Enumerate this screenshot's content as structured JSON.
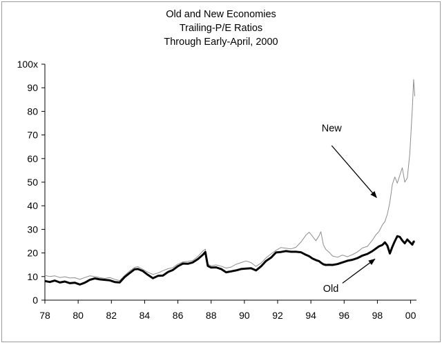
{
  "chart_data": {
    "type": "line",
    "title": "Old and New Economies",
    "subtitle": [
      "Trailing-P/E Ratios",
      "Through Early-April, 2000"
    ],
    "xlabel": "",
    "ylabel": "",
    "xlim": [
      1978,
      2000.35
    ],
    "ylim": [
      0,
      100
    ],
    "x_ticks": [
      "78",
      "80",
      "82",
      "84",
      "86",
      "88",
      "90",
      "92",
      "94",
      "96",
      "98",
      "00"
    ],
    "x_tick_values": [
      1978,
      1980,
      1982,
      1984,
      1986,
      1988,
      1990,
      1992,
      1994,
      1996,
      1998,
      2000
    ],
    "y_ticks": [
      "0",
      "10",
      "20",
      "30",
      "40",
      "50",
      "60",
      "70",
      "80",
      "90",
      "100x"
    ],
    "y_tick_values": [
      0,
      10,
      20,
      30,
      40,
      50,
      60,
      70,
      80,
      90,
      100
    ],
    "grid": false,
    "legend": "none",
    "annotations": [
      {
        "text": "New",
        "series": "New"
      },
      {
        "text": "Old",
        "series": "Old"
      }
    ],
    "series": [
      {
        "name": "New",
        "color": "#8c8c8c",
        "points": [
          [
            1978.0,
            10.5
          ],
          [
            1978.3,
            10.0
          ],
          [
            1978.6,
            10.3
          ],
          [
            1978.9,
            9.6
          ],
          [
            1979.2,
            9.9
          ],
          [
            1979.5,
            9.4
          ],
          [
            1979.8,
            9.5
          ],
          [
            1980.1,
            8.8
          ],
          [
            1980.4,
            9.6
          ],
          [
            1980.7,
            10.3
          ],
          [
            1981.0,
            10.0
          ],
          [
            1981.3,
            9.6
          ],
          [
            1981.6,
            9.2
          ],
          [
            1981.9,
            9.6
          ],
          [
            1982.2,
            8.8
          ],
          [
            1982.5,
            8.3
          ],
          [
            1982.8,
            10.5
          ],
          [
            1983.1,
            12.4
          ],
          [
            1983.4,
            13.9
          ],
          [
            1983.6,
            14.2
          ],
          [
            1983.9,
            13.0
          ],
          [
            1984.2,
            11.8
          ],
          [
            1984.5,
            10.9
          ],
          [
            1984.8,
            11.5
          ],
          [
            1985.1,
            12.5
          ],
          [
            1985.4,
            13.3
          ],
          [
            1985.7,
            13.8
          ],
          [
            1986.0,
            15.3
          ],
          [
            1986.3,
            16.2
          ],
          [
            1986.6,
            16.4
          ],
          [
            1986.9,
            16.8
          ],
          [
            1987.2,
            18.5
          ],
          [
            1987.5,
            20.8
          ],
          [
            1987.65,
            21.6
          ],
          [
            1987.8,
            15.3
          ],
          [
            1988.0,
            14.6
          ],
          [
            1988.3,
            14.9
          ],
          [
            1988.6,
            14.4
          ],
          [
            1988.9,
            13.6
          ],
          [
            1989.2,
            14.0
          ],
          [
            1989.5,
            15.2
          ],
          [
            1989.8,
            15.9
          ],
          [
            1990.1,
            16.6
          ],
          [
            1990.4,
            15.9
          ],
          [
            1990.7,
            14.3
          ],
          [
            1991.0,
            15.7
          ],
          [
            1991.3,
            17.9
          ],
          [
            1991.6,
            19.6
          ],
          [
            1991.9,
            21.1
          ],
          [
            1992.2,
            22.3
          ],
          [
            1992.5,
            22.0
          ],
          [
            1992.8,
            21.7
          ],
          [
            1993.1,
            22.4
          ],
          [
            1993.4,
            24.6
          ],
          [
            1993.7,
            27.5
          ],
          [
            1993.9,
            28.8
          ],
          [
            1994.1,
            27.0
          ],
          [
            1994.3,
            25.2
          ],
          [
            1994.5,
            27.4
          ],
          [
            1994.6,
            29.0
          ],
          [
            1994.75,
            23.5
          ],
          [
            1994.9,
            21.5
          ],
          [
            1995.1,
            20.3
          ],
          [
            1995.3,
            18.7
          ],
          [
            1995.6,
            18.2
          ],
          [
            1995.9,
            19.1
          ],
          [
            1996.2,
            18.4
          ],
          [
            1996.5,
            19.3
          ],
          [
            1996.8,
            20.4
          ],
          [
            1997.1,
            22.1
          ],
          [
            1997.4,
            22.8
          ],
          [
            1997.7,
            25.4
          ],
          [
            1997.9,
            27.6
          ],
          [
            1998.1,
            29.1
          ],
          [
            1998.3,
            31.9
          ],
          [
            1998.45,
            33.3
          ],
          [
            1998.6,
            36.5
          ],
          [
            1998.75,
            41.5
          ],
          [
            1998.9,
            49.0
          ],
          [
            1999.05,
            52.2
          ],
          [
            1999.2,
            49.6
          ],
          [
            1999.35,
            52.9
          ],
          [
            1999.5,
            56.1
          ],
          [
            1999.65,
            50.0
          ],
          [
            1999.8,
            51.8
          ],
          [
            1999.95,
            62.2
          ],
          [
            2000.1,
            81.0
          ],
          [
            2000.18,
            93.5
          ],
          [
            2000.25,
            86.4
          ]
        ]
      },
      {
        "name": "Old",
        "color": "#000000",
        "points": [
          [
            1978.0,
            8.1
          ],
          [
            1978.3,
            7.7
          ],
          [
            1978.6,
            8.3
          ],
          [
            1978.9,
            7.5
          ],
          [
            1979.2,
            7.9
          ],
          [
            1979.5,
            7.2
          ],
          [
            1979.8,
            7.4
          ],
          [
            1980.1,
            6.6
          ],
          [
            1980.4,
            7.4
          ],
          [
            1980.7,
            8.6
          ],
          [
            1981.0,
            9.2
          ],
          [
            1981.3,
            8.8
          ],
          [
            1981.6,
            8.6
          ],
          [
            1981.9,
            8.4
          ],
          [
            1982.2,
            7.7
          ],
          [
            1982.5,
            7.5
          ],
          [
            1982.8,
            9.8
          ],
          [
            1983.1,
            11.5
          ],
          [
            1983.4,
            13.1
          ],
          [
            1983.6,
            13.2
          ],
          [
            1983.9,
            12.3
          ],
          [
            1984.2,
            10.7
          ],
          [
            1984.5,
            9.3
          ],
          [
            1984.8,
            10.3
          ],
          [
            1985.1,
            10.4
          ],
          [
            1985.4,
            11.9
          ],
          [
            1985.7,
            12.8
          ],
          [
            1986.0,
            14.4
          ],
          [
            1986.3,
            15.5
          ],
          [
            1986.6,
            15.4
          ],
          [
            1986.9,
            16.0
          ],
          [
            1987.2,
            17.4
          ],
          [
            1987.5,
            19.2
          ],
          [
            1987.65,
            20.4
          ],
          [
            1987.8,
            14.5
          ],
          [
            1988.0,
            13.8
          ],
          [
            1988.3,
            13.9
          ],
          [
            1988.6,
            13.2
          ],
          [
            1988.9,
            11.8
          ],
          [
            1989.2,
            12.2
          ],
          [
            1989.5,
            12.6
          ],
          [
            1989.8,
            13.2
          ],
          [
            1990.1,
            13.4
          ],
          [
            1990.4,
            13.5
          ],
          [
            1990.7,
            12.6
          ],
          [
            1991.0,
            14.3
          ],
          [
            1991.3,
            16.6
          ],
          [
            1991.6,
            18.0
          ],
          [
            1991.9,
            20.2
          ],
          [
            1992.2,
            20.4
          ],
          [
            1992.5,
            20.8
          ],
          [
            1992.8,
            20.5
          ],
          [
            1993.1,
            20.5
          ],
          [
            1993.4,
            20.3
          ],
          [
            1993.7,
            19.2
          ],
          [
            1993.9,
            18.6
          ],
          [
            1994.1,
            17.6
          ],
          [
            1994.3,
            17.0
          ],
          [
            1994.5,
            16.5
          ],
          [
            1994.6,
            15.9
          ],
          [
            1994.75,
            15.2
          ],
          [
            1994.9,
            14.9
          ],
          [
            1995.1,
            15.0
          ],
          [
            1995.3,
            14.9
          ],
          [
            1995.6,
            15.3
          ],
          [
            1995.9,
            16.0
          ],
          [
            1996.2,
            16.7
          ],
          [
            1996.5,
            17.1
          ],
          [
            1996.8,
            17.8
          ],
          [
            1997.1,
            18.9
          ],
          [
            1997.4,
            19.6
          ],
          [
            1997.7,
            20.8
          ],
          [
            1997.9,
            21.8
          ],
          [
            1998.1,
            22.8
          ],
          [
            1998.3,
            23.4
          ],
          [
            1998.45,
            24.5
          ],
          [
            1998.6,
            23.1
          ],
          [
            1998.75,
            19.8
          ],
          [
            1998.9,
            22.6
          ],
          [
            1999.05,
            25.0
          ],
          [
            1999.2,
            27.1
          ],
          [
            1999.35,
            26.8
          ],
          [
            1999.5,
            25.3
          ],
          [
            1999.65,
            24.1
          ],
          [
            1999.8,
            25.7
          ],
          [
            1999.95,
            24.6
          ],
          [
            2000.1,
            23.5
          ],
          [
            2000.18,
            24.8
          ],
          [
            2000.25,
            24.9
          ]
        ]
      }
    ]
  }
}
